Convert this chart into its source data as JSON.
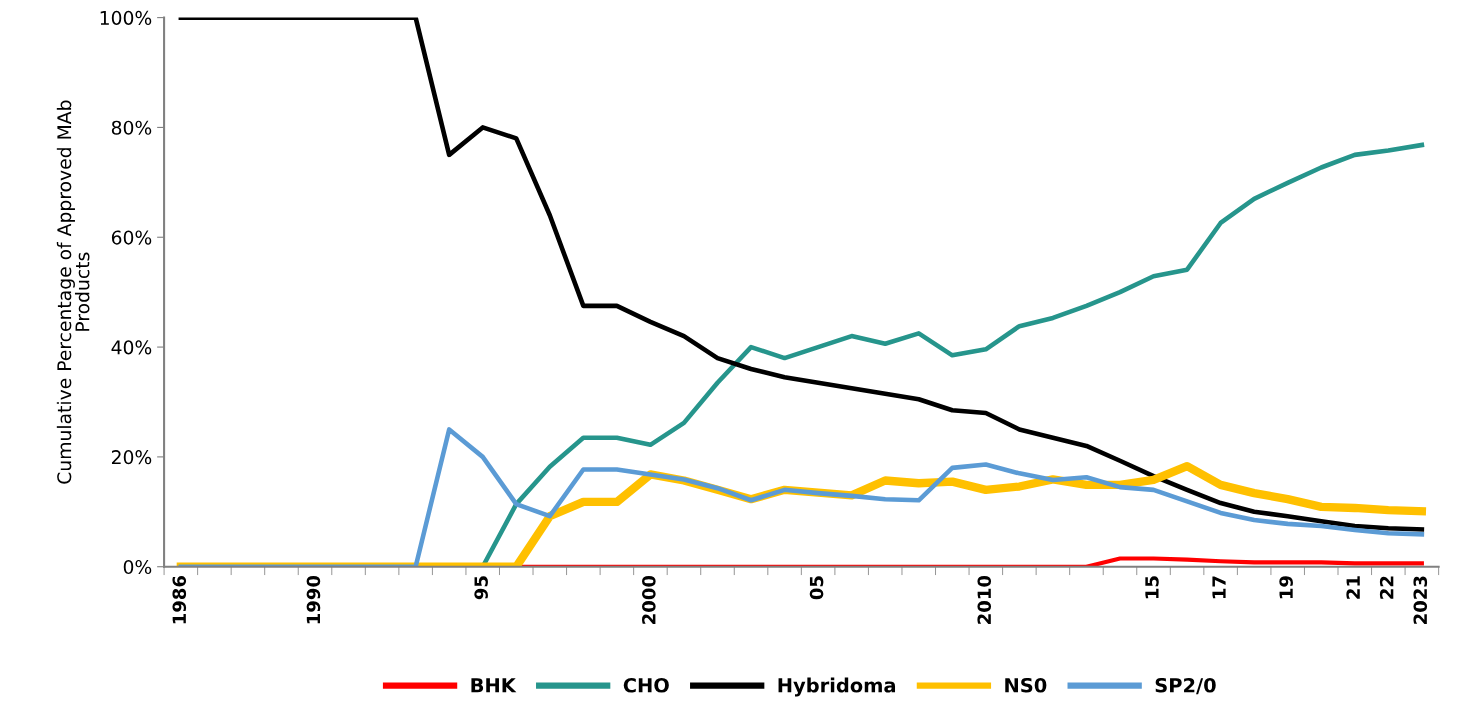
{
  "chart_data": {
    "type": "line",
    "ylabel": "Cumulative Percentage of Approved MAb\nProducts",
    "categories": [
      "1986",
      null,
      null,
      null,
      "1990",
      null,
      null,
      null,
      null,
      "95",
      null,
      null,
      null,
      null,
      "2000",
      null,
      null,
      null,
      null,
      "05",
      null,
      null,
      null,
      null,
      "2010",
      null,
      null,
      null,
      null,
      "15",
      null,
      "17",
      null,
      "19",
      null,
      "21",
      "22",
      "2023"
    ],
    "series": [
      {
        "name": "BHK",
        "color": "#ff0000",
        "values": [
          null,
          null,
          null,
          null,
          null,
          null,
          null,
          null,
          null,
          null,
          0,
          0,
          0,
          0,
          0,
          0,
          0,
          0,
          0,
          0,
          0,
          0,
          0,
          0,
          0,
          0,
          0,
          0,
          1.5,
          1.5,
          1.3,
          1.0,
          0.8,
          0.8,
          0.8,
          0.6,
          0.6,
          0.6
        ]
      },
      {
        "name": "CHO",
        "color": "#26958c",
        "values": [
          null,
          null,
          null,
          null,
          null,
          null,
          null,
          null,
          null,
          0,
          11.4,
          18.2,
          23.5,
          23.5,
          22.2,
          26.2,
          33.5,
          40,
          38,
          40,
          42,
          40.6,
          42.5,
          38.5,
          39.6,
          43.8,
          45.3,
          47.5,
          50,
          52.9,
          54.1,
          62.6,
          67,
          69.9,
          72.7,
          75,
          75.8,
          76.8
        ]
      },
      {
        "name": "Hybridoma",
        "color": "#000000",
        "values": [
          100,
          100,
          100,
          100,
          100,
          100,
          100,
          100,
          75,
          80,
          78,
          64,
          47.5,
          47.5,
          44.6,
          42,
          38,
          36,
          34.5,
          33.5,
          32.5,
          31.5,
          30.5,
          28.5,
          28,
          25,
          23.5,
          22,
          19.3,
          16.5,
          14,
          11.6,
          10,
          9.2,
          8.3,
          7.4,
          7,
          6.8
        ]
      },
      {
        "name": "NS0",
        "color": "#ffc000",
        "values": [
          0,
          0,
          0,
          0,
          0,
          0,
          0,
          0,
          0,
          0,
          0,
          9.2,
          11.8,
          11.8,
          16.8,
          15.7,
          14,
          12.3,
          14,
          13.5,
          13,
          15.7,
          15.2,
          15.5,
          14,
          14.6,
          15.9,
          14.9,
          14.9,
          15.8,
          18.3,
          14.9,
          13.4,
          12.3,
          10.9,
          10.7,
          10.3,
          10.1
        ]
      },
      {
        "name": "SP2/0",
        "color": "#5b9bd5",
        "values": [
          0,
          0,
          0,
          0,
          0,
          0,
          0,
          0,
          25,
          20,
          11.4,
          9.2,
          17.7,
          17.7,
          16.8,
          15.9,
          14.3,
          12.1,
          14,
          13.4,
          12.9,
          12.3,
          12.1,
          18,
          18.6,
          17,
          15.8,
          16.3,
          14.5,
          14,
          11.9,
          9.8,
          8.5,
          7.8,
          7.4,
          6.7,
          6.1,
          5.9
        ]
      }
    ],
    "ylim": [
      0,
      100
    ],
    "yticks": [
      {
        "value": 0,
        "label": "0%"
      },
      {
        "value": 20,
        "label": "20%"
      },
      {
        "value": 40,
        "label": "40%"
      },
      {
        "value": 60,
        "label": "60%"
      },
      {
        "value": 80,
        "label": "80%"
      },
      {
        "value": 100,
        "label": "100%"
      }
    ],
    "grid": false,
    "legend": "bottom",
    "marker": "none",
    "line_style": "solid"
  }
}
